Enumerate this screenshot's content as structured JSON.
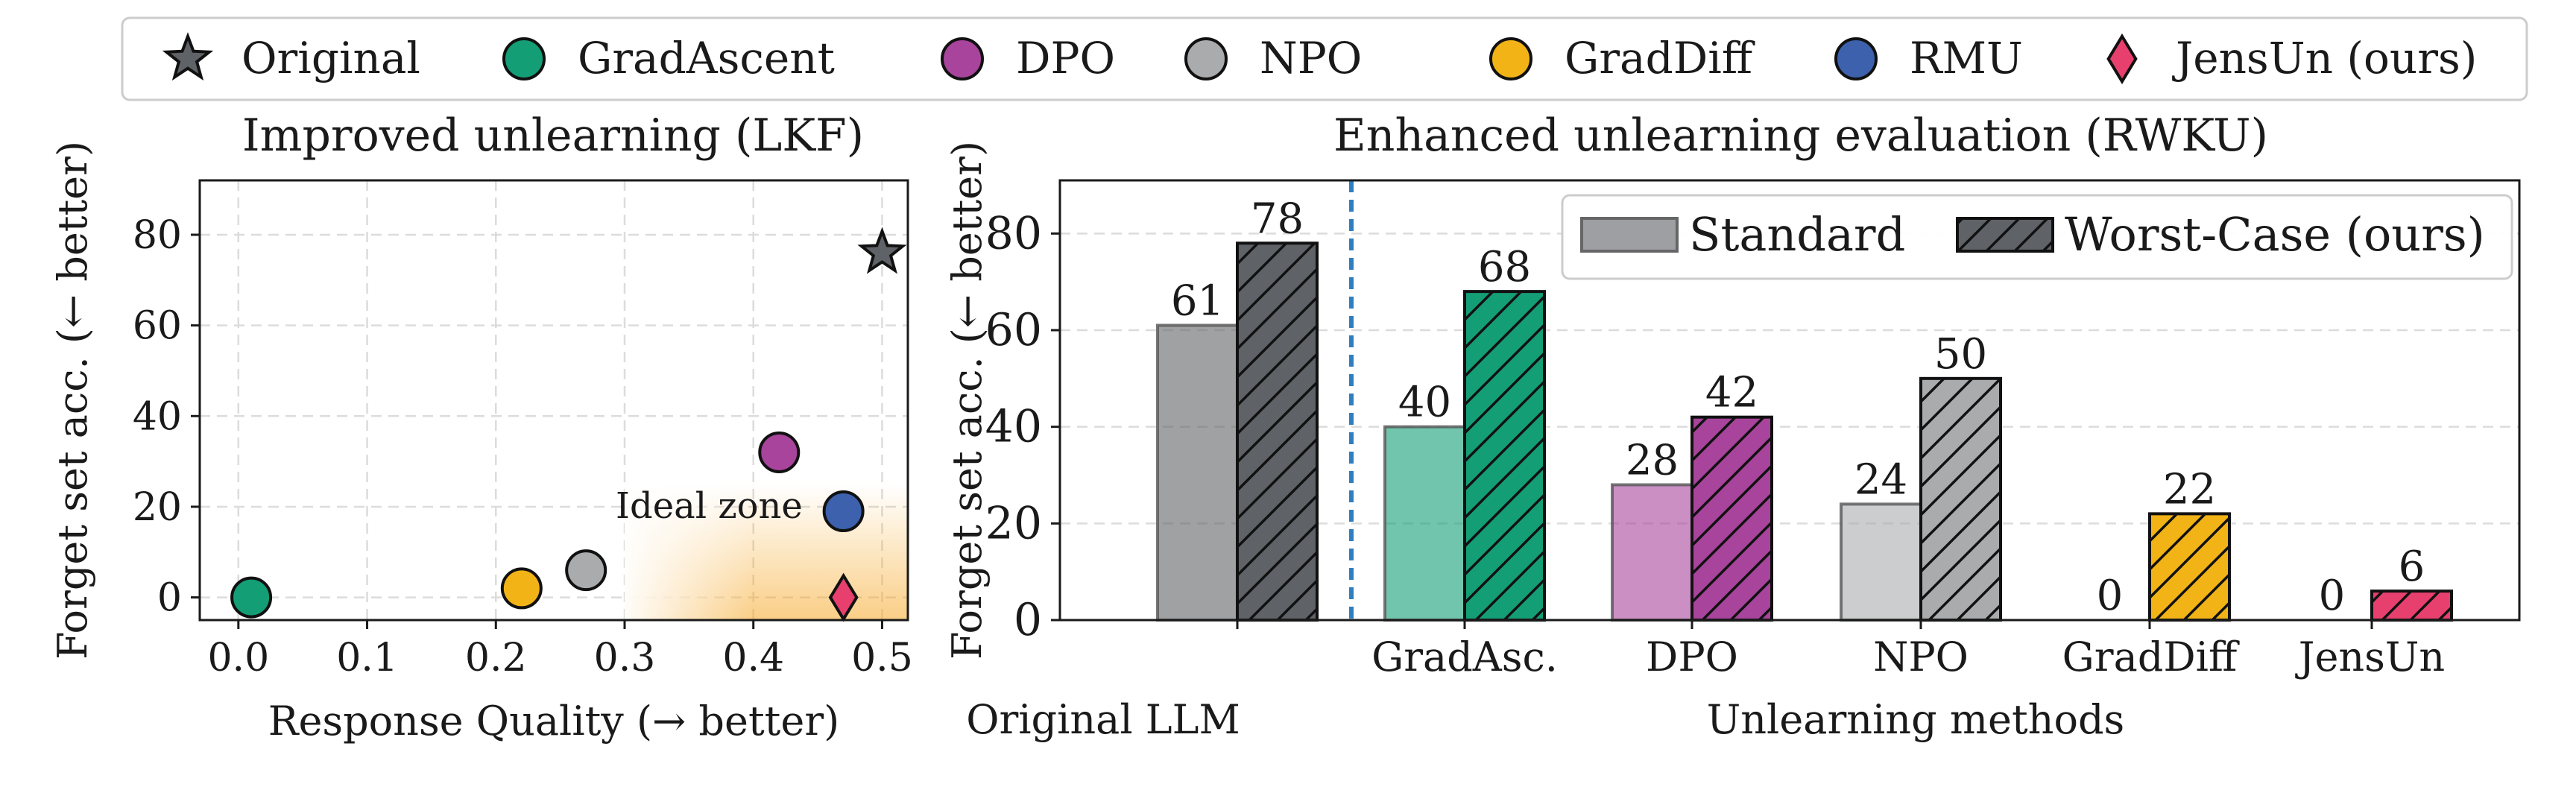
{
  "legend": {
    "items": [
      {
        "label": "Original",
        "marker": "star",
        "color": "#5f6266"
      },
      {
        "label": "GradAscent",
        "marker": "circle",
        "color": "#149e76"
      },
      {
        "label": "DPO",
        "marker": "circle",
        "color": "#a8449c"
      },
      {
        "label": "NPO",
        "marker": "circle",
        "color": "#a9abad"
      },
      {
        "label": "GradDiff",
        "marker": "circle",
        "color": "#f2b316"
      },
      {
        "label": "RMU",
        "marker": "circle",
        "color": "#3d61ad"
      },
      {
        "label": "JensUn (ours)",
        "marker": "diamond",
        "color": "#e8406e"
      }
    ]
  },
  "chart_data": [
    {
      "type": "scatter",
      "title": "Improved unlearning (LKF)",
      "xlabel": "Response Quality (→ better)",
      "ylabel": "Forget set acc. (← better)",
      "xlim": [
        -0.03,
        0.52
      ],
      "ylim": [
        -5,
        92
      ],
      "xticks": [
        0.0,
        0.1,
        0.2,
        0.3,
        0.4,
        0.5
      ],
      "xtick_labels": [
        "0.0",
        "0.1",
        "0.2",
        "0.3",
        "0.4",
        "0.5"
      ],
      "yticks": [
        0,
        20,
        40,
        60,
        80
      ],
      "ytick_labels": [
        "0",
        "20",
        "40",
        "60",
        "80"
      ],
      "grid": true,
      "zone": {
        "label": "Ideal zone",
        "x_from": 0.3,
        "y_to": 25,
        "color": "#f6a623"
      },
      "points": [
        {
          "name": "Original",
          "x": 0.5,
          "y": 76,
          "marker": "star",
          "color": "#5f6266"
        },
        {
          "name": "GradAscent",
          "x": 0.01,
          "y": 0,
          "marker": "circle",
          "color": "#149e76"
        },
        {
          "name": "DPO",
          "x": 0.42,
          "y": 32,
          "marker": "circle",
          "color": "#a8449c"
        },
        {
          "name": "NPO",
          "x": 0.27,
          "y": 6,
          "marker": "circle",
          "color": "#a9abad"
        },
        {
          "name": "GradDiff",
          "x": 0.22,
          "y": 2,
          "marker": "circle",
          "color": "#f2b316"
        },
        {
          "name": "RMU",
          "x": 0.47,
          "y": 19,
          "marker": "circle",
          "color": "#3d61ad"
        },
        {
          "name": "JensUn (ours)",
          "x": 0.47,
          "y": 0,
          "marker": "diamond",
          "color": "#e8406e"
        }
      ]
    },
    {
      "type": "bar",
      "title": "Enhanced unlearning evaluation (RWKU)",
      "xlabel": "Unlearning methods",
      "ylabel": "Forget set acc. (← better)",
      "ylim": [
        0,
        91
      ],
      "yticks": [
        0,
        20,
        40,
        60,
        80
      ],
      "ytick_labels": [
        "0",
        "20",
        "40",
        "60",
        "80"
      ],
      "grid": true,
      "legend_position": "top-right",
      "categories": [
        "Original LLM",
        "GradAsc.",
        "DPO",
        "NPO",
        "GradDiff",
        "JensUn"
      ],
      "category_colors": [
        "#5f6266",
        "#149e76",
        "#a8449c",
        "#a9abad",
        "#f2b316",
        "#e8406e"
      ],
      "series": [
        {
          "name": "Standard",
          "values": [
            61,
            40,
            28,
            24,
            0,
            0
          ],
          "labels": [
            "61",
            "40",
            "28",
            "24",
            "0",
            "0"
          ]
        },
        {
          "name": "Worst-Case (ours)",
          "values": [
            78,
            68,
            42,
            50,
            22,
            6
          ],
          "labels": [
            "78",
            "68",
            "42",
            "50",
            "22",
            "6"
          ]
        }
      ],
      "divider_after": "Original LLM"
    }
  ]
}
